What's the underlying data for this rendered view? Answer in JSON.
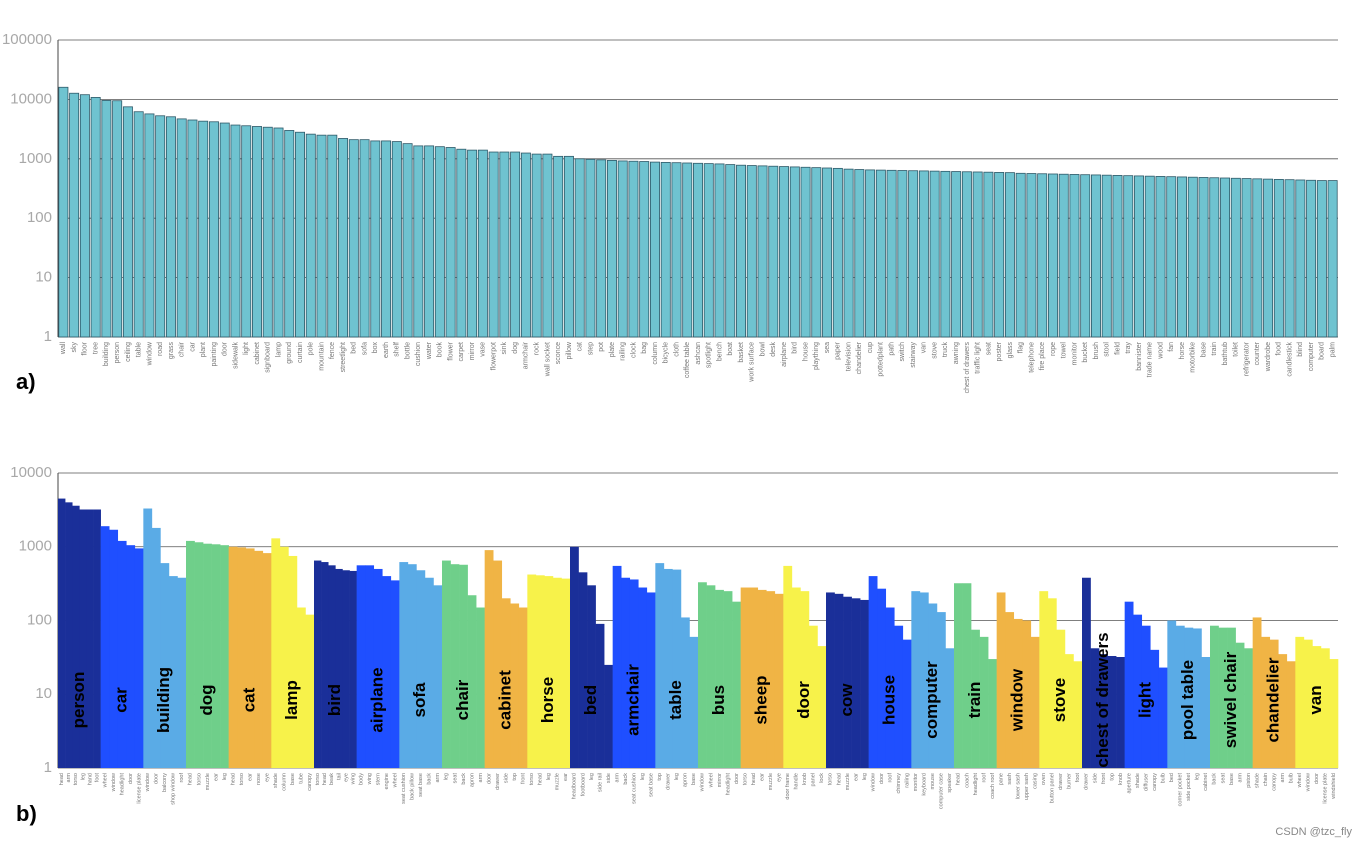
{
  "chart_data": [
    {
      "type": "bar",
      "panel_label": "a)",
      "log": true,
      "grid": true,
      "color": "#6fc3d0",
      "ylim": [
        1,
        100000
      ],
      "yticks": [
        1,
        10,
        100,
        1000,
        10000,
        100000
      ],
      "categories": [
        "wall",
        "sky",
        "floor",
        "tree",
        "building",
        "person",
        "ceiling",
        "table",
        "window",
        "road",
        "grass",
        "chair",
        "car",
        "plant",
        "painting",
        "door",
        "sidewalk",
        "light",
        "cabinet",
        "signboard",
        "lamp",
        "ground",
        "curtain",
        "pole",
        "mountain",
        "fence",
        "streetlight",
        "bed",
        "sofa",
        "box",
        "earth",
        "shelf",
        "bottle",
        "cushion",
        "water",
        "book",
        "flower",
        "carpet",
        "mirror",
        "vase",
        "flowerpot",
        "sink",
        "dog",
        "armchair",
        "rock",
        "wall socket",
        "sconce",
        "pillow",
        "cat",
        "step",
        "pot",
        "plate",
        "railing",
        "clock",
        "bag",
        "column",
        "bicycle",
        "cloth",
        "coffee table",
        "ashcan",
        "spotlight",
        "bench",
        "boat",
        "basket",
        "work surface",
        "bowl",
        "desk",
        "airplane",
        "bird",
        "house",
        "plaything",
        "sea",
        "paper",
        "television",
        "chandelier",
        "cup",
        "pottedplant",
        "path",
        "switch",
        "stairway",
        "van",
        "stove",
        "truck",
        "awning",
        "chest of drawers",
        "traffic light",
        "seat",
        "poster",
        "glass",
        "flag",
        "telephone",
        "fire place",
        "rope",
        "towel",
        "monitor",
        "bucket",
        "brush",
        "stool",
        "field",
        "tray",
        "bannister",
        "trade name",
        "wood",
        "fan",
        "horse",
        "motorbike",
        "base",
        "train",
        "bathtub",
        "toilet",
        "refrigerator",
        "counter",
        "wardrobe",
        "food",
        "candlestick",
        "blind",
        "computer",
        "board",
        "palm"
      ],
      "values": [
        16000,
        12700,
        12000,
        10800,
        9600,
        9500,
        7500,
        6200,
        5700,
        5300,
        5100,
        4700,
        4500,
        4300,
        4200,
        4000,
        3700,
        3600,
        3500,
        3400,
        3300,
        3000,
        2800,
        2600,
        2500,
        2500,
        2200,
        2100,
        2100,
        2000,
        2000,
        1950,
        1800,
        1650,
        1650,
        1600,
        1550,
        1450,
        1400,
        1400,
        1300,
        1300,
        1300,
        1250,
        1200,
        1200,
        1100,
        1100,
        1000,
        980,
        960,
        940,
        920,
        910,
        900,
        880,
        870,
        860,
        850,
        840,
        830,
        820,
        800,
        780,
        770,
        760,
        750,
        740,
        730,
        720,
        710,
        700,
        690,
        670,
        660,
        650,
        645,
        640,
        635,
        630,
        625,
        620,
        615,
        610,
        605,
        600,
        595,
        590,
        585,
        570,
        565,
        560,
        555,
        550,
        545,
        540,
        535,
        530,
        525,
        520,
        515,
        510,
        505,
        500,
        495,
        490,
        485,
        480,
        475,
        470,
        465,
        460,
        455,
        450,
        445,
        440,
        435,
        430,
        430
      ]
    },
    {
      "type": "grouped_bar",
      "panel_label": "b)",
      "log": true,
      "grid": true,
      "ylim": [
        1,
        10000
      ],
      "yticks": [
        1,
        10,
        100,
        1000,
        10000
      ],
      "groups": [
        {
          "name": "person",
          "color": "#1a2f99",
          "categories": [
            "head",
            "arm",
            "torso",
            "leg",
            "hand",
            "foot"
          ],
          "values": [
            4500,
            4000,
            3600,
            3200,
            3200,
            3200
          ]
        },
        {
          "name": "car",
          "color": "#1f4fff",
          "categories": [
            "wheel",
            "window",
            "headlight",
            "door",
            "license plate"
          ],
          "values": [
            1900,
            1700,
            1200,
            1050,
            950
          ]
        },
        {
          "name": "building",
          "color": "#5aabe6",
          "categories": [
            "window",
            "door",
            "balcony",
            "shop window",
            "roof"
          ],
          "values": [
            3300,
            1800,
            600,
            400,
            380
          ]
        },
        {
          "name": "dog",
          "color": "#6fcf8a",
          "categories": [
            "head",
            "torso",
            "muzzle",
            "ear",
            "leg"
          ],
          "values": [
            1200,
            1150,
            1100,
            1080,
            1050
          ]
        },
        {
          "name": "cat",
          "color": "#f0b445",
          "categories": [
            "head",
            "torso",
            "ear",
            "nose",
            "eye"
          ],
          "values": [
            1000,
            980,
            950,
            880,
            820
          ]
        },
        {
          "name": "lamp",
          "color": "#f7f24a",
          "categories": [
            "shade",
            "column",
            "base",
            "tube",
            "canopy"
          ],
          "values": [
            1300,
            1000,
            750,
            150,
            120
          ]
        },
        {
          "name": "bird",
          "color": "#1a2f99",
          "categories": [
            "torso",
            "head",
            "beak",
            "tail",
            "eye",
            "wing"
          ],
          "values": [
            650,
            620,
            560,
            500,
            480,
            470
          ]
        },
        {
          "name": "airplane",
          "color": "#1f4fff",
          "categories": [
            "body",
            "wing",
            "stern",
            "engine",
            "wheel"
          ],
          "values": [
            560,
            560,
            500,
            400,
            350
          ]
        },
        {
          "name": "sofa",
          "color": "#5aabe6",
          "categories": [
            "seat cushion",
            "back pillow",
            "seat base",
            "back",
            "arm"
          ],
          "values": [
            620,
            580,
            480,
            380,
            300
          ]
        },
        {
          "name": "chair",
          "color": "#6fcf8a",
          "categories": [
            "leg",
            "seat",
            "back",
            "apron",
            "arm"
          ],
          "values": [
            650,
            580,
            570,
            220,
            150
          ]
        },
        {
          "name": "cabinet",
          "color": "#f0b445",
          "categories": [
            "door",
            "drawer",
            "side",
            "top",
            "front"
          ],
          "values": [
            900,
            650,
            200,
            170,
            150
          ]
        },
        {
          "name": "horse",
          "color": "#f7f24a",
          "categories": [
            "torso",
            "head",
            "leg",
            "muzzle",
            "ear"
          ],
          "values": [
            420,
            410,
            400,
            380,
            370
          ]
        },
        {
          "name": "bed",
          "color": "#1a2f99",
          "categories": [
            "headboard",
            "footboard",
            "leg",
            "side rail",
            "side"
          ],
          "values": [
            1000,
            450,
            300,
            90,
            25
          ]
        },
        {
          "name": "armchair",
          "color": "#1f4fff",
          "categories": [
            "arm",
            "back",
            "seat cushion",
            "leg",
            "seat base"
          ],
          "values": [
            550,
            380,
            360,
            280,
            240
          ]
        },
        {
          "name": "table",
          "color": "#5aabe6",
          "categories": [
            "top",
            "drawer",
            "leg",
            "apron",
            "base"
          ],
          "values": [
            600,
            500,
            490,
            110,
            60
          ]
        },
        {
          "name": "bus",
          "color": "#6fcf8a",
          "categories": [
            "window",
            "wheel",
            "mirror",
            "headlight",
            "door"
          ],
          "values": [
            330,
            300,
            260,
            250,
            180
          ]
        },
        {
          "name": "sheep",
          "color": "#f0b445",
          "categories": [
            "torso",
            "head",
            "ear",
            "muzzle",
            "eye"
          ],
          "values": [
            280,
            280,
            260,
            250,
            230
          ]
        },
        {
          "name": "door",
          "color": "#f7f24a",
          "categories": [
            "door frame",
            "handle",
            "knob",
            "panel",
            "lock"
          ],
          "values": [
            550,
            280,
            250,
            85,
            45
          ]
        },
        {
          "name": "cow",
          "color": "#1a2f99",
          "categories": [
            "torso",
            "head",
            "muzzle",
            "ear",
            "leg"
          ],
          "values": [
            240,
            230,
            210,
            200,
            190
          ]
        },
        {
          "name": "house",
          "color": "#1f4fff",
          "categories": [
            "window",
            "door",
            "roof",
            "chimney",
            "railing"
          ],
          "values": [
            400,
            270,
            150,
            85,
            55
          ]
        },
        {
          "name": "computer",
          "color": "#5aabe6",
          "categories": [
            "monitor",
            "keyboard",
            "mouse",
            "computer case",
            "speaker"
          ],
          "values": [
            250,
            240,
            170,
            130,
            42
          ]
        },
        {
          "name": "train",
          "color": "#6fcf8a",
          "categories": [
            "head",
            "coach",
            "headlight",
            "roof",
            "coach roof"
          ],
          "values": [
            320,
            320,
            75,
            60,
            30
          ]
        },
        {
          "name": "window",
          "color": "#f0b445",
          "categories": [
            "pane",
            "sash",
            "lower sash",
            "upper sash",
            "casing"
          ],
          "values": [
            240,
            130,
            105,
            100,
            60
          ]
        },
        {
          "name": "stove",
          "color": "#f7f24a",
          "categories": [
            "oven",
            "button panel",
            "drawer",
            "burner",
            "foot"
          ],
          "values": [
            250,
            200,
            75,
            35,
            28
          ]
        },
        {
          "name": "chest of drawers",
          "color": "#1a2f99",
          "categories": [
            "drawer",
            "side",
            "front",
            "top",
            "knob"
          ],
          "values": [
            380,
            42,
            35,
            33,
            32
          ]
        },
        {
          "name": "light",
          "color": "#1f4fff",
          "categories": [
            "aperture",
            "shade",
            "diffuser",
            "canopy",
            "bulb"
          ],
          "values": [
            180,
            120,
            85,
            40,
            23
          ]
        },
        {
          "name": "pool table",
          "color": "#5aabe6",
          "categories": [
            "bed",
            "corner pocket",
            "side pocket",
            "leg",
            "cabinet"
          ],
          "values": [
            100,
            85,
            80,
            78,
            32
          ]
        },
        {
          "name": "swivel chair",
          "color": "#6fcf8a",
          "categories": [
            "back",
            "seat",
            "base",
            "arm",
            "piston"
          ],
          "values": [
            85,
            80,
            80,
            50,
            42
          ]
        },
        {
          "name": "chandelier",
          "color": "#f0b445",
          "categories": [
            "shade",
            "chain",
            "canopy",
            "arm",
            "bulb"
          ],
          "values": [
            110,
            60,
            55,
            35,
            28
          ]
        },
        {
          "name": "van",
          "color": "#f7f24a",
          "categories": [
            "wheel",
            "window",
            "door",
            "license plate",
            "windshield"
          ],
          "values": [
            60,
            55,
            45,
            42,
            30
          ]
        }
      ]
    }
  ],
  "watermark": "CSDN @tzc_fly"
}
